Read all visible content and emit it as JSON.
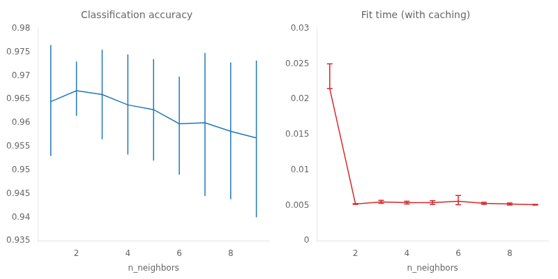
{
  "chart_data": [
    {
      "type": "line",
      "title": "Classification accuracy",
      "xlabel": "n_neighbors",
      "x": [
        1,
        2,
        3,
        4,
        5,
        6,
        7,
        8,
        9
      ],
      "series": [
        {
          "color": "#1f77b4",
          "values": [
            0.9645,
            0.9668,
            0.966,
            0.9638,
            0.9628,
            0.9598,
            0.96,
            0.9582,
            0.9568
          ],
          "upper": [
            0.9765,
            0.973,
            0.9755,
            0.9745,
            0.9735,
            0.9698,
            0.9748,
            0.9728,
            0.9732
          ],
          "lower": [
            0.953,
            0.9615,
            0.9565,
            0.9533,
            0.952,
            0.949,
            0.9445,
            0.9438,
            0.94
          ]
        }
      ],
      "xlim": [
        0.5,
        9.5
      ],
      "xticks": [
        2,
        4,
        6,
        8
      ],
      "ylim": [
        0.935,
        0.98
      ],
      "yticks": [
        0.935,
        0.94,
        0.945,
        0.95,
        0.955,
        0.96,
        0.965,
        0.97,
        0.975,
        0.98
      ],
      "grid": false
    },
    {
      "type": "line",
      "title": "Fit time (with caching)",
      "xlabel": "n_neighbors",
      "x": [
        1,
        2,
        3,
        4,
        5,
        6,
        7,
        8,
        9
      ],
      "series": [
        {
          "color": "#d62728",
          "values": [
            0.0215,
            0.0052,
            0.0055,
            0.0054,
            0.0054,
            0.0056,
            0.0053,
            0.0052,
            0.0051
          ],
          "upper": [
            0.025,
            0.00525,
            0.0057,
            0.0056,
            0.00565,
            0.0064,
            0.00545,
            0.00535,
            0.00515
          ],
          "lower": [
            0.0215,
            0.00515,
            0.0053,
            0.0052,
            0.00515,
            0.0051,
            0.00515,
            0.00505,
            0.00505
          ]
        }
      ],
      "xlim": [
        0.5,
        9.5
      ],
      "xticks": [
        2,
        4,
        6,
        8
      ],
      "ylim": [
        0,
        0.03
      ],
      "yticks": [
        0,
        0.005,
        0.01,
        0.015,
        0.02,
        0.025,
        0.03
      ],
      "grid": false
    }
  ]
}
